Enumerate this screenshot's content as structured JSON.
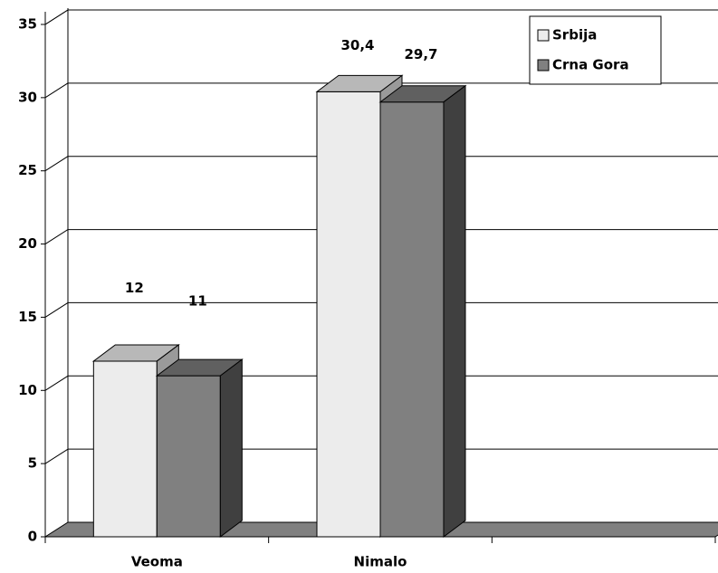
{
  "chart_data": {
    "type": "bar3d",
    "categories": [
      "Veoma",
      "Nimalo",
      null
    ],
    "series": [
      {
        "name": "Srbija",
        "color": "#ececec",
        "values": [
          12,
          30.4,
          null
        ],
        "value_labels": [
          "12",
          "30,4",
          null
        ]
      },
      {
        "name": "Crna Gora",
        "color": "#808080",
        "values": [
          11,
          29.7,
          null
        ],
        "value_labels": [
          "11",
          "29,7",
          null
        ]
      }
    ],
    "ylim": [
      0,
      35
    ],
    "yticks": [
      0,
      5,
      10,
      15,
      20,
      25,
      30,
      35
    ],
    "grid": true,
    "legend": "top-right"
  }
}
